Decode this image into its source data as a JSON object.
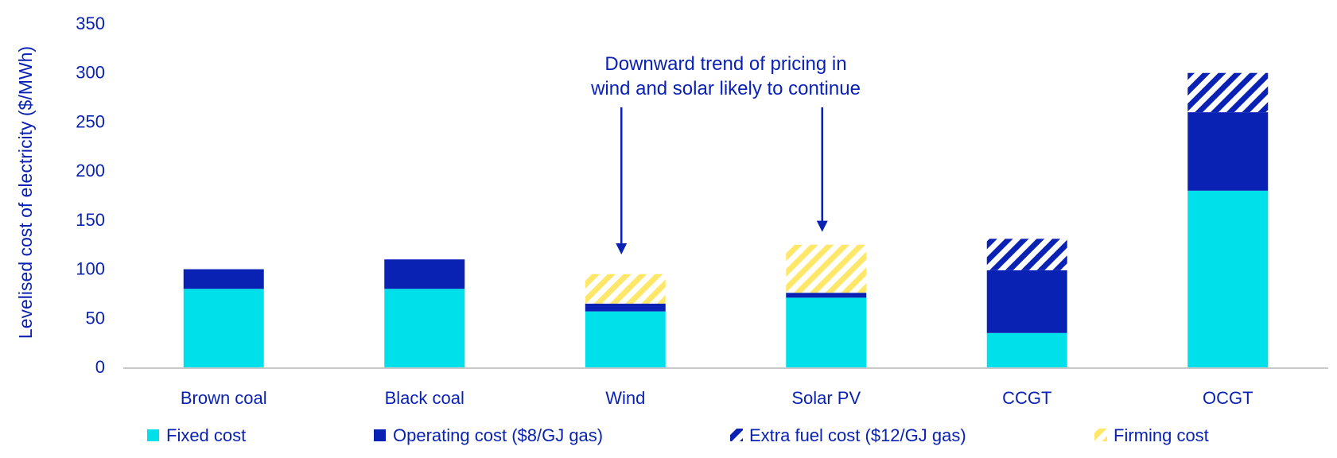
{
  "colors": {
    "fixed": "#00E0EA",
    "operating": "#0A22B4",
    "extra_fuel": "#0A22B4",
    "firming": "#FFE76A",
    "text": "#0A22B4",
    "axis": "#C8C8C8"
  },
  "chart_data": {
    "type": "bar",
    "stacked": true,
    "title": "",
    "xlabel": "",
    "ylabel": "Levelised cost of electricity ($/MWh)",
    "ylim": [
      0,
      350
    ],
    "yticks": [
      0,
      50,
      100,
      150,
      200,
      250,
      300,
      350
    ],
    "categories": [
      "Brown coal",
      "Black coal",
      "Wind",
      "Solar PV",
      "CCGT",
      "OCGT"
    ],
    "series": [
      {
        "name": "Fixed cost",
        "pattern": "solid",
        "color_key": "fixed",
        "values": [
          80,
          80,
          57,
          71,
          35,
          180
        ]
      },
      {
        "name": "Operating cost ($8/GJ gas)",
        "pattern": "solid",
        "color_key": "operating",
        "values": [
          20,
          30,
          8,
          5,
          64,
          80
        ]
      },
      {
        "name": "Extra fuel cost ($12/GJ gas)",
        "pattern": "hatch",
        "color_key": "extra_fuel",
        "values": [
          0,
          0,
          0,
          0,
          32,
          40
        ]
      },
      {
        "name": "Firming cost",
        "pattern": "hatch",
        "color_key": "firming",
        "values": [
          0,
          0,
          30,
          49,
          0,
          0
        ]
      }
    ],
    "annotation": {
      "lines": [
        "Downward trend of pricing in",
        "wind and solar likely to continue"
      ],
      "targets": [
        "Wind",
        "Solar PV"
      ]
    },
    "grid": false,
    "legend_position": "bottom"
  }
}
